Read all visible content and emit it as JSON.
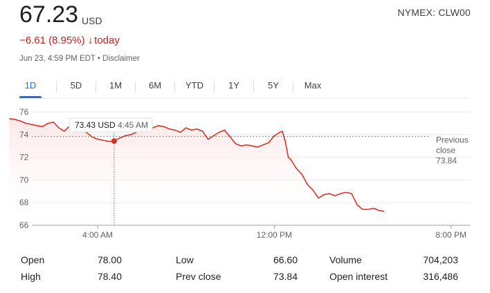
{
  "quote": {
    "price": "67.23",
    "currency": "USD",
    "ticker": "NYMEX: CLW00",
    "change": "−6.61 (8.95%)",
    "change_arrow": "↓",
    "change_suffix": "today",
    "timestamp": "Jun 23, 4:59 PM EDT • Disclaimer"
  },
  "tabs": [
    {
      "label": "1D",
      "active": true
    },
    {
      "label": "5D"
    },
    {
      "label": "1M"
    },
    {
      "label": "6M"
    },
    {
      "label": "YTD"
    },
    {
      "label": "1Y"
    },
    {
      "label": "5Y"
    },
    {
      "label": "Max"
    }
  ],
  "colors": {
    "line": "#d93025",
    "accent": "#1a73e8",
    "negative": "#c5221f"
  },
  "chart_data": {
    "type": "area",
    "x_unit": "time of day",
    "y_unit": "USD",
    "ylim": [
      66,
      76
    ],
    "yticks": [
      66,
      68,
      70,
      72,
      74,
      76
    ],
    "xticks": [
      "4:00 AM",
      "12:00 PM",
      "8:00 PM"
    ],
    "grid": true,
    "series": [
      {
        "points": [
          [
            "12:00 AM",
            75.4
          ],
          [
            "12:15 AM",
            75.35
          ],
          [
            "12:30 AM",
            75.2
          ],
          [
            "12:45 AM",
            75.0
          ],
          [
            "1:00 AM",
            74.9
          ],
          [
            "1:15 AM",
            74.8
          ],
          [
            "1:30 AM",
            74.7
          ],
          [
            "1:45 AM",
            75.0
          ],
          [
            "2:00 AM",
            75.1
          ],
          [
            "2:15 AM",
            74.6
          ],
          [
            "2:30 AM",
            74.3
          ],
          [
            "2:45 AM",
            74.8
          ],
          [
            "3:00 AM",
            74.5
          ],
          [
            "3:15 AM",
            74.3
          ],
          [
            "3:30 AM",
            74.2
          ],
          [
            "3:45 AM",
            73.8
          ],
          [
            "4:00 AM",
            73.6
          ],
          [
            "4:15 AM",
            73.5
          ],
          [
            "4:30 AM",
            73.4
          ],
          [
            "4:45 AM",
            73.43
          ],
          [
            "5:00 AM",
            73.7
          ],
          [
            "5:15 AM",
            73.9
          ],
          [
            "5:30 AM",
            74.0
          ],
          [
            "5:45 AM",
            74.2
          ],
          [
            "6:00 AM",
            74.5
          ],
          [
            "6:15 AM",
            74.4
          ],
          [
            "6:30 AM",
            74.6
          ],
          [
            "6:45 AM",
            74.8
          ],
          [
            "7:00 AM",
            74.7
          ],
          [
            "7:15 AM",
            74.5
          ],
          [
            "7:30 AM",
            74.4
          ],
          [
            "7:45 AM",
            74.2
          ],
          [
            "8:00 AM",
            74.6
          ],
          [
            "8:15 AM",
            74.4
          ],
          [
            "8:30 AM",
            74.5
          ],
          [
            "8:45 AM",
            74.3
          ],
          [
            "9:00 AM",
            73.6
          ],
          [
            "9:15 AM",
            73.9
          ],
          [
            "9:30 AM",
            74.2
          ],
          [
            "9:45 AM",
            74.4
          ],
          [
            "10:00 AM",
            73.8
          ],
          [
            "10:15 AM",
            73.2
          ],
          [
            "10:30 AM",
            73.0
          ],
          [
            "10:45 AM",
            73.1
          ],
          [
            "11:00 AM",
            73.0
          ],
          [
            "11:15 AM",
            72.9
          ],
          [
            "11:30 AM",
            73.1
          ],
          [
            "11:45 AM",
            73.3
          ],
          [
            "12:00 PM",
            73.9
          ],
          [
            "12:15 PM",
            74.2
          ],
          [
            "12:22 PM",
            74.3
          ],
          [
            "12:30 PM",
            73.4
          ],
          [
            "12:38 PM",
            72.0
          ],
          [
            "12:45 PM",
            71.8
          ],
          [
            "1:00 PM",
            71.0
          ],
          [
            "1:15 PM",
            70.5
          ],
          [
            "1:30 PM",
            69.6
          ],
          [
            "1:45 PM",
            69.1
          ],
          [
            "2:00 PM",
            68.4
          ],
          [
            "2:15 PM",
            68.7
          ],
          [
            "2:30 PM",
            68.8
          ],
          [
            "2:45 PM",
            68.6
          ],
          [
            "3:00 PM",
            68.8
          ],
          [
            "3:15 PM",
            68.9
          ],
          [
            "3:30 PM",
            68.8
          ],
          [
            "3:45 PM",
            67.8
          ],
          [
            "4:00 PM",
            67.4
          ],
          [
            "4:15 PM",
            67.4
          ],
          [
            "4:30 PM",
            67.5
          ],
          [
            "4:45 PM",
            67.3
          ],
          [
            "4:59 PM",
            67.23
          ]
        ]
      }
    ],
    "previous_close": {
      "label": "Previous close",
      "value": "73.84"
    },
    "tooltip": {
      "value": "73.43 USD",
      "time": "4:45 AM"
    }
  },
  "stats": [
    {
      "label": "Open",
      "value": "78.00"
    },
    {
      "label": "High",
      "value": "78.40"
    },
    {
      "label": "Low",
      "value": "66.60"
    },
    {
      "label": "Prev close",
      "value": "73.84"
    },
    {
      "label": "Volume",
      "value": "704,203"
    },
    {
      "label": "Open interest",
      "value": "316,486"
    }
  ]
}
